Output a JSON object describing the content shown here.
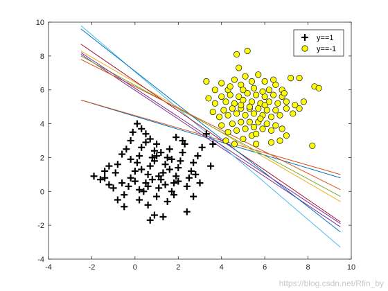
{
  "chart_data": {
    "type": "scatter",
    "xlim": [
      -4,
      10
    ],
    "ylim": [
      -4,
      10
    ],
    "xticks": [
      -4,
      -2,
      0,
      2,
      4,
      6,
      8,
      10
    ],
    "yticks": [
      -4,
      -2,
      0,
      2,
      4,
      6,
      8,
      10
    ],
    "grid": false,
    "legend_position": "top-right",
    "series": [
      {
        "name": "y==1",
        "marker": "plus",
        "color": "#000000",
        "center": [
          0.8,
          1.0
        ],
        "points": [
          [
            -1.6,
            0.7
          ],
          [
            -1.4,
            0.8
          ],
          [
            -1.2,
            0.4
          ],
          [
            -1.0,
            0.2
          ],
          [
            -1.4,
            1.2
          ],
          [
            -1.2,
            1.5
          ],
          [
            -0.9,
            1.1
          ],
          [
            -0.8,
            1.6
          ],
          [
            -0.6,
            2.2
          ],
          [
            -0.4,
            2.5
          ],
          [
            -0.2,
            3.0
          ],
          [
            -0.1,
            3.5
          ],
          [
            0.1,
            4.0
          ],
          [
            0.3,
            3.7
          ],
          [
            0.5,
            3.4
          ],
          [
            0.7,
            3.1
          ],
          [
            -0.8,
            -0.5
          ],
          [
            -0.5,
            -0.2
          ],
          [
            -0.3,
            0.3
          ],
          [
            -0.2,
            0.8
          ],
          [
            0.0,
            1.2
          ],
          [
            0.1,
            1.7
          ],
          [
            0.2,
            2.1
          ],
          [
            0.3,
            2.6
          ],
          [
            0.4,
            0.0
          ],
          [
            0.5,
            0.5
          ],
          [
            0.6,
            1.0
          ],
          [
            0.7,
            1.5
          ],
          [
            0.8,
            2.0
          ],
          [
            0.9,
            2.4
          ],
          [
            1.0,
            2.8
          ],
          [
            1.1,
            0.2
          ],
          [
            1.2,
            0.7
          ],
          [
            1.3,
            1.1
          ],
          [
            1.4,
            1.6
          ],
          [
            1.5,
            2.0
          ],
          [
            1.6,
            2.5
          ],
          [
            1.7,
            0.0
          ],
          [
            1.8,
            0.5
          ],
          [
            1.9,
            0.9
          ],
          [
            2.0,
            1.4
          ],
          [
            2.1,
            1.8
          ],
          [
            2.2,
            2.3
          ],
          [
            2.3,
            2.8
          ],
          [
            2.4,
            0.3
          ],
          [
            2.5,
            0.8
          ],
          [
            2.6,
            1.2
          ],
          [
            2.7,
            1.7
          ],
          [
            2.9,
            2.1
          ],
          [
            3.1,
            2.6
          ],
          [
            3.3,
            3.4
          ],
          [
            3.6,
            2.8
          ],
          [
            3.5,
            1.5
          ],
          [
            3.0,
            0.5
          ],
          [
            2.7,
            -0.3
          ],
          [
            2.4,
            -1.2
          ],
          [
            1.3,
            -1.5
          ],
          [
            0.7,
            -1.7
          ],
          [
            0.9,
            -1.4
          ],
          [
            -0.5,
            -0.9
          ],
          [
            -1.9,
            0.9
          ],
          [
            0.2,
            -0.5
          ],
          [
            0.6,
            -0.8
          ],
          [
            1.0,
            -0.3
          ],
          [
            1.5,
            -0.6
          ],
          [
            1.8,
            -0.2
          ],
          [
            0.0,
            0.6
          ],
          [
            0.3,
            1.3
          ],
          [
            0.9,
            1.8
          ],
          [
            1.2,
            2.3
          ],
          [
            1.6,
            1.3
          ],
          [
            0.5,
            2.9
          ],
          [
            1.9,
            3.2
          ],
          [
            2.2,
            3.0
          ],
          [
            -0.2,
            1.9
          ],
          [
            0.6,
            0.3
          ],
          [
            1.1,
            0.9
          ],
          [
            1.4,
            0.4
          ],
          [
            2.0,
            0.6
          ],
          [
            2.8,
            1.0
          ],
          [
            0.2,
            0.1
          ],
          [
            0.8,
            0.7
          ],
          [
            1.7,
            1.9
          ],
          [
            1.0,
            2.1
          ],
          [
            -0.6,
            0.5
          ]
        ]
      },
      {
        "name": "y==-1",
        "marker": "circle",
        "color": "#ffff00",
        "center": [
          5.6,
          5.0
        ],
        "points": [
          [
            4.7,
            8.1
          ],
          [
            5.2,
            8.3
          ],
          [
            3.3,
            6.5
          ],
          [
            3.7,
            6.0
          ],
          [
            4.0,
            6.4
          ],
          [
            4.3,
            6.0
          ],
          [
            4.6,
            6.6
          ],
          [
            4.9,
            6.3
          ],
          [
            5.1,
            6.8
          ],
          [
            5.4,
            6.5
          ],
          [
            5.7,
            6.9
          ],
          [
            6.0,
            6.5
          ],
          [
            6.2,
            6.0
          ],
          [
            6.5,
            6.3
          ],
          [
            6.8,
            6.0
          ],
          [
            7.2,
            6.7
          ],
          [
            7.6,
            6.7
          ],
          [
            8.3,
            6.2
          ],
          [
            8.5,
            6.1
          ],
          [
            3.4,
            5.5
          ],
          [
            3.7,
            5.2
          ],
          [
            4.0,
            5.6
          ],
          [
            4.2,
            5.3
          ],
          [
            4.4,
            5.7
          ],
          [
            4.6,
            5.2
          ],
          [
            4.8,
            5.6
          ],
          [
            5.0,
            5.4
          ],
          [
            5.2,
            5.8
          ],
          [
            5.4,
            5.3
          ],
          [
            5.6,
            5.7
          ],
          [
            5.8,
            5.2
          ],
          [
            6.0,
            5.6
          ],
          [
            6.2,
            5.3
          ],
          [
            6.4,
            5.7
          ],
          [
            6.6,
            5.2
          ],
          [
            6.8,
            5.6
          ],
          [
            7.0,
            5.3
          ],
          [
            7.4,
            5.1
          ],
          [
            7.8,
            5.3
          ],
          [
            3.6,
            4.7
          ],
          [
            3.9,
            4.4
          ],
          [
            4.1,
            4.8
          ],
          [
            4.3,
            4.5
          ],
          [
            4.5,
            4.9
          ],
          [
            4.7,
            4.6
          ],
          [
            4.9,
            4.9
          ],
          [
            5.1,
            4.5
          ],
          [
            5.3,
            4.9
          ],
          [
            5.5,
            4.6
          ],
          [
            5.7,
            4.9
          ],
          [
            5.9,
            4.5
          ],
          [
            6.1,
            4.8
          ],
          [
            6.3,
            4.4
          ],
          [
            6.5,
            4.8
          ],
          [
            6.7,
            4.5
          ],
          [
            7.0,
            4.9
          ],
          [
            7.3,
            4.6
          ],
          [
            7.6,
            4.9
          ],
          [
            4.0,
            3.9
          ],
          [
            4.3,
            3.5
          ],
          [
            4.5,
            4.0
          ],
          [
            4.7,
            3.6
          ],
          [
            4.9,
            4.1
          ],
          [
            5.1,
            3.7
          ],
          [
            5.3,
            4.1
          ],
          [
            5.5,
            3.8
          ],
          [
            5.7,
            4.1
          ],
          [
            5.9,
            3.7
          ],
          [
            6.1,
            4.0
          ],
          [
            6.3,
            3.6
          ],
          [
            6.5,
            3.9
          ],
          [
            6.8,
            3.7
          ],
          [
            4.2,
            3.0
          ],
          [
            4.6,
            2.8
          ],
          [
            5.0,
            3.1
          ],
          [
            5.4,
            3.3
          ],
          [
            5.6,
            2.8
          ],
          [
            6.3,
            2.9
          ],
          [
            6.7,
            3.0
          ],
          [
            7.0,
            3.3
          ],
          [
            8.2,
            2.7
          ],
          [
            4.8,
            7.3
          ],
          [
            5.0,
            6.0
          ],
          [
            5.5,
            6.1
          ],
          [
            5.9,
            5.9
          ],
          [
            6.4,
            6.6
          ],
          [
            5.3,
            5.0
          ],
          [
            5.8,
            4.3
          ],
          [
            6.0,
            5.1
          ],
          [
            4.4,
            6.2
          ],
          [
            6.9,
            5.8
          ],
          [
            5.6,
            3.4
          ],
          [
            4.9,
            5.1
          ]
        ]
      }
    ],
    "lines": [
      {
        "x": [
          -2.5,
          9.5
        ],
        "y": [
          5.4,
          0.8
        ],
        "color": "#0072bd"
      },
      {
        "x": [
          -2.5,
          9.5
        ],
        "y": [
          5.4,
          1.0
        ],
        "color": "#d95319"
      },
      {
        "x": [
          -2.5,
          9.5
        ],
        "y": [
          8.3,
          -0.6
        ],
        "color": "#edb120"
      },
      {
        "x": [
          -2.5,
          9.5
        ],
        "y": [
          8.1,
          -2.1
        ],
        "color": "#7e2f8e"
      },
      {
        "x": [
          -2.5,
          9.5
        ],
        "y": [
          8.0,
          -0.3
        ],
        "color": "#77ac30"
      },
      {
        "x": [
          -2.5,
          9.5
        ],
        "y": [
          9.8,
          -3.3
        ],
        "color": "#4dbeee"
      },
      {
        "x": [
          -2.5,
          9.5
        ],
        "y": [
          8.7,
          -1.8
        ],
        "color": "#a2142f"
      },
      {
        "x": [
          -2.5,
          9.5
        ],
        "y": [
          9.6,
          -2.4
        ],
        "color": "#0072bd"
      },
      {
        "x": [
          -2.5,
          9.5
        ],
        "y": [
          7.8,
          0.1
        ],
        "color": "#d95319"
      },
      {
        "x": [
          -2.5,
          9.5
        ],
        "y": [
          8.2,
          -1.9
        ],
        "color": "#7e2f8e"
      }
    ]
  },
  "watermark": "https://blog.csdn.net/Rfin_by"
}
